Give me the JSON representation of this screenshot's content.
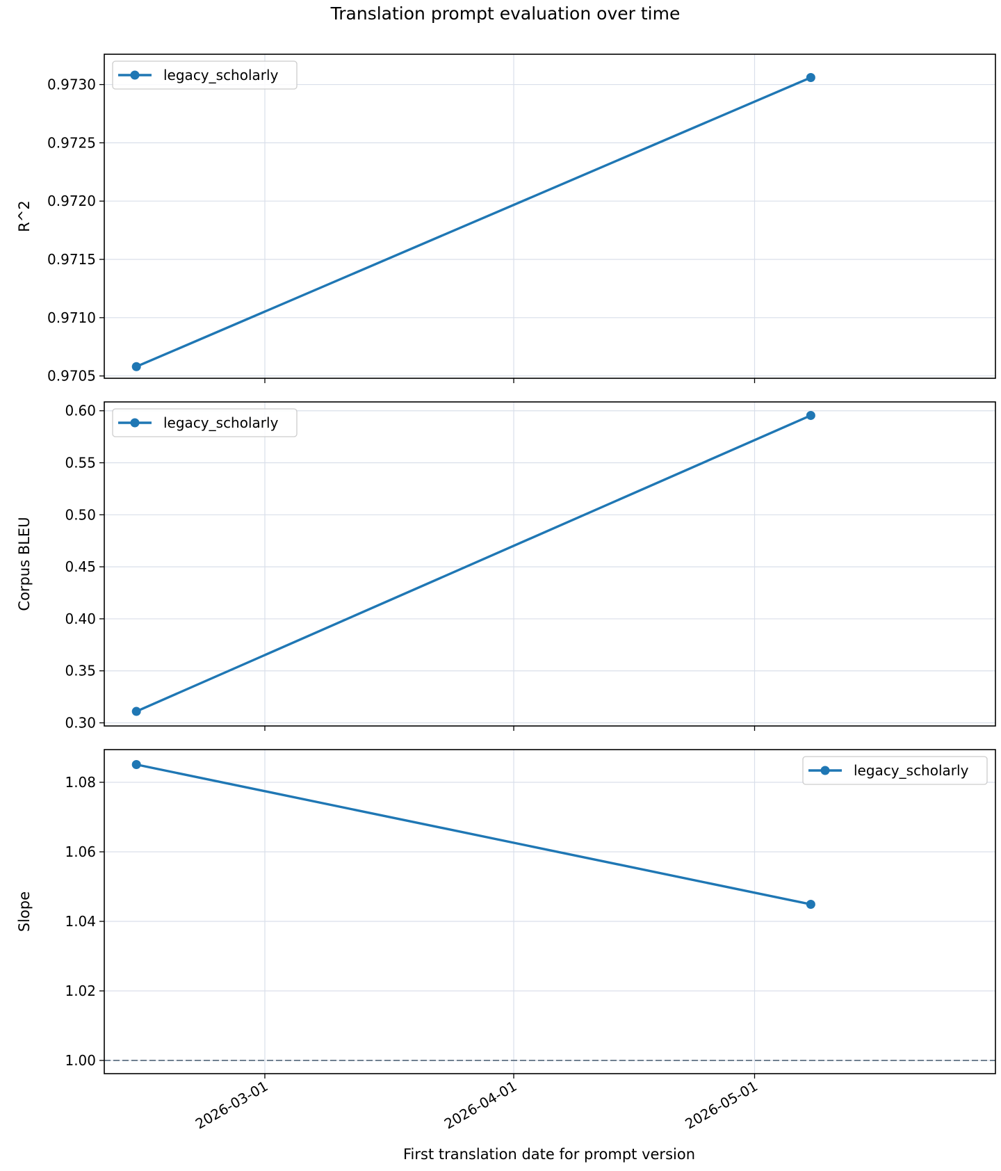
{
  "chart_data": {
    "type": "line",
    "title": "Translation prompt evaluation over time",
    "xlabel": "First translation date for prompt version",
    "x_ticks": [
      "2026-03-01",
      "2026-04-01",
      "2026-05-01"
    ],
    "x_range": [
      "2026-02-09",
      "2026-05-31"
    ],
    "grid": true,
    "panels": [
      {
        "ylabel": "R^2",
        "ylim": [
          0.97048,
          0.97326
        ],
        "y_ticks": [
          "0.9705",
          "0.9710",
          "0.9715",
          "0.9720",
          "0.9725",
          "0.9730"
        ],
        "legend_position": "top-left",
        "series": [
          {
            "name": "legacy_scholarly",
            "color": "#1f77b4",
            "x": [
              "2026-02-13",
              "2026-05-08"
            ],
            "y": [
              0.97058,
              0.97306
            ]
          }
        ]
      },
      {
        "ylabel": "Corpus BLEU",
        "ylim": [
          0.297,
          0.6085
        ],
        "y_ticks": [
          "0.30",
          "0.35",
          "0.40",
          "0.45",
          "0.50",
          "0.55",
          "0.60"
        ],
        "legend_position": "top-left",
        "series": [
          {
            "name": "legacy_scholarly",
            "color": "#1f77b4",
            "x": [
              "2026-02-13",
              "2026-05-08"
            ],
            "y": [
              0.311,
              0.5955
            ]
          }
        ]
      },
      {
        "ylabel": "Slope",
        "ylim": [
          0.9962,
          1.0894
        ],
        "y_ticks": [
          "1.00",
          "1.02",
          "1.04",
          "1.06",
          "1.08"
        ],
        "legend_position": "top-right",
        "reference_line": {
          "y": 1.0,
          "style": "dashed",
          "color": "#708090"
        },
        "series": [
          {
            "name": "legacy_scholarly",
            "color": "#1f77b4",
            "x": [
              "2026-02-13",
              "2026-05-08"
            ],
            "y": [
              1.0851,
              1.0449
            ]
          }
        ]
      }
    ]
  }
}
